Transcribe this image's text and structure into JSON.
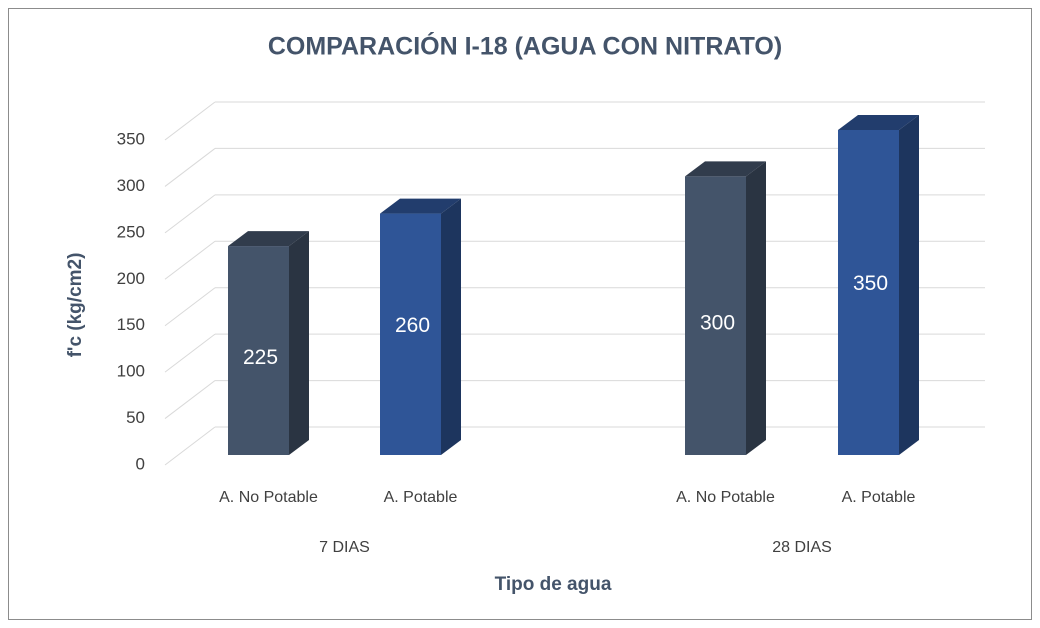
{
  "chart_data": {
    "type": "bar3d",
    "title": "COMPARACIÓN I-18 (AGUA CON NITRATO)",
    "y_label": "f'c (kg/cm2)",
    "x_label": "Tipo de agua",
    "categories": [
      "A. No Potable",
      "A. Potable",
      "A. No Potable",
      "A. Potable"
    ],
    "groups": [
      "7 DIAS",
      "28 DIAS"
    ],
    "values": [
      225,
      260,
      300,
      350
    ],
    "colors": [
      "#44546a",
      "#2f5597",
      "#44546a",
      "#2f5597"
    ],
    "ylim": [
      0,
      350
    ],
    "yticks": [
      0,
      50,
      100,
      150,
      200,
      250,
      300,
      350
    ],
    "grid": true
  }
}
